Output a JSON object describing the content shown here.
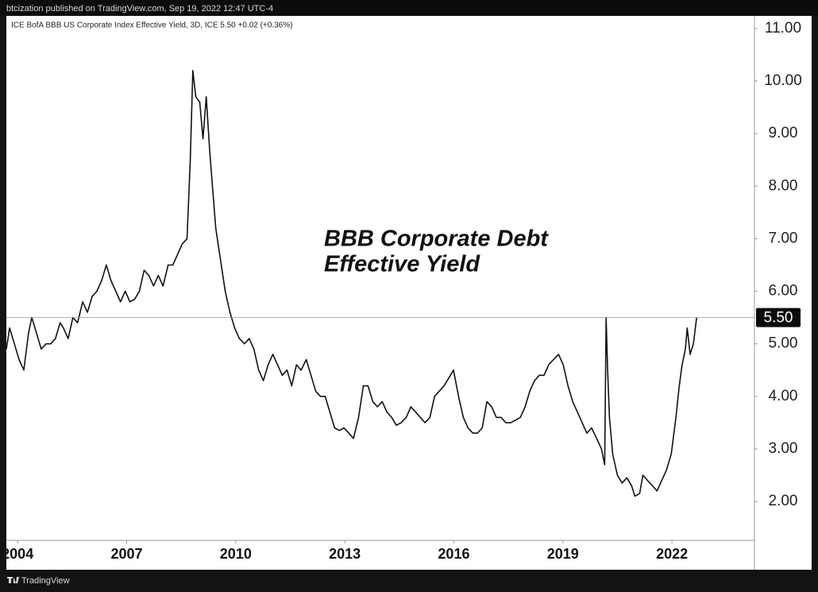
{
  "header": {
    "publisher": "btcization published on TradingView.com, Sep 19, 2022 12:47 UTC-4"
  },
  "footer": {
    "brand": "TradingView"
  },
  "chart_data": {
    "type": "line",
    "title": "ICE BofA BBB US Corporate Index Effective Yield, 3D, ICE  5.50  +0.02 (+0.36%)",
    "annotation": [
      "BBB Corporate Debt",
      "Effective Yield"
    ],
    "x": [
      2003.69,
      2003.78,
      2003.91,
      2004.04,
      2004.17,
      2004.3,
      2004.39,
      2004.52,
      2004.65,
      2004.78,
      2004.91,
      2005.04,
      2005.17,
      2005.26,
      2005.39,
      2005.52,
      2005.65,
      2005.79,
      2005.92,
      2006.05,
      2006.18,
      2006.31,
      2006.44,
      2006.57,
      2006.7,
      2006.83,
      2006.96,
      2007.09,
      2007.22,
      2007.35,
      2007.48,
      2007.61,
      2007.74,
      2007.87,
      2008.0,
      2008.14,
      2008.27,
      2008.4,
      2008.53,
      2008.66,
      2008.75,
      2008.82,
      2008.9,
      2009.01,
      2009.1,
      2009.19,
      2009.28,
      2009.36,
      2009.45,
      2009.58,
      2009.71,
      2009.84,
      2009.97,
      2010.1,
      2010.24,
      2010.37,
      2010.5,
      2010.63,
      2010.76,
      2010.89,
      2011.02,
      2011.15,
      2011.28,
      2011.41,
      2011.54,
      2011.67,
      2011.8,
      2011.94,
      2012.07,
      2012.2,
      2012.33,
      2012.46,
      2012.59,
      2012.72,
      2012.85,
      2012.98,
      2013.11,
      2013.24,
      2013.38,
      2013.51,
      2013.64,
      2013.77,
      2013.9,
      2014.03,
      2014.16,
      2014.29,
      2014.42,
      2014.55,
      2014.69,
      2014.82,
      2014.95,
      2015.08,
      2015.21,
      2015.34,
      2015.47,
      2015.6,
      2015.73,
      2015.86,
      2015.99,
      2016.13,
      2016.26,
      2016.39,
      2016.52,
      2016.65,
      2016.78,
      2016.91,
      2017.04,
      2017.17,
      2017.3,
      2017.43,
      2017.57,
      2017.7,
      2017.83,
      2017.96,
      2018.09,
      2018.22,
      2018.35,
      2018.48,
      2018.61,
      2018.74,
      2018.88,
      2019.01,
      2019.14,
      2019.27,
      2019.4,
      2019.53,
      2019.66,
      2019.79,
      2019.93,
      2020.06,
      2020.15,
      2020.19,
      2020.23,
      2020.28,
      2020.37,
      2020.5,
      2020.63,
      2020.76,
      2020.89,
      2020.98,
      2021.11,
      2021.2,
      2021.33,
      2021.46,
      2021.59,
      2021.72,
      2021.85,
      2021.98,
      2022.11,
      2022.2,
      2022.28,
      2022.37,
      2022.42,
      2022.5,
      2022.59,
      2022.68
    ],
    "series": [
      {
        "name": "ICE BofA BBB US Corporate Index Effective Yield",
        "color": "#111111",
        "values": [
          4.9,
          5.3,
          5.0,
          4.7,
          4.5,
          5.2,
          5.5,
          5.2,
          4.9,
          5.0,
          5.0,
          5.1,
          5.4,
          5.3,
          5.1,
          5.5,
          5.4,
          5.8,
          5.6,
          5.9,
          6.0,
          6.2,
          6.5,
          6.2,
          6.0,
          5.8,
          6.0,
          5.8,
          5.85,
          6.0,
          6.4,
          6.3,
          6.1,
          6.3,
          6.1,
          6.5,
          6.5,
          6.7,
          6.9,
          7.0,
          8.5,
          10.2,
          9.7,
          9.6,
          8.9,
          9.7,
          8.7,
          8.0,
          7.2,
          6.6,
          6.0,
          5.6,
          5.3,
          5.1,
          5.0,
          5.1,
          4.9,
          4.5,
          4.3,
          4.6,
          4.8,
          4.6,
          4.4,
          4.5,
          4.2,
          4.6,
          4.5,
          4.7,
          4.4,
          4.1,
          4.0,
          4.0,
          3.7,
          3.4,
          3.35,
          3.4,
          3.3,
          3.2,
          3.6,
          4.2,
          4.2,
          3.9,
          3.8,
          3.9,
          3.7,
          3.6,
          3.45,
          3.5,
          3.6,
          3.8,
          3.7,
          3.6,
          3.5,
          3.6,
          4.0,
          4.1,
          4.2,
          4.35,
          4.5,
          4.0,
          3.6,
          3.4,
          3.3,
          3.3,
          3.4,
          3.9,
          3.8,
          3.6,
          3.6,
          3.5,
          3.5,
          3.55,
          3.6,
          3.8,
          4.1,
          4.3,
          4.4,
          4.4,
          4.6,
          4.7,
          4.8,
          4.6,
          4.2,
          3.9,
          3.7,
          3.5,
          3.3,
          3.4,
          3.2,
          3.0,
          2.7,
          5.5,
          4.5,
          3.6,
          2.9,
          2.5,
          2.35,
          2.45,
          2.3,
          2.1,
          2.15,
          2.5,
          2.4,
          2.3,
          2.2,
          2.4,
          2.6,
          2.9,
          3.6,
          4.2,
          4.6,
          4.9,
          5.3,
          4.8,
          5.0,
          5.5
        ]
      }
    ],
    "last_value": {
      "value": 5.5,
      "label": "5.50"
    },
    "xlim": [
      2003.69,
      2024.27
    ],
    "xticks": [
      2004,
      2007,
      2010,
      2013,
      2016,
      2019,
      2022
    ],
    "ylim": [
      1.26,
      11.24
    ],
    "yticks": [
      {
        "value": 2,
        "label": "2.00"
      },
      {
        "value": 3,
        "label": "3.00"
      },
      {
        "value": 4,
        "label": "4.00"
      },
      {
        "value": 5,
        "label": "5.00"
      },
      {
        "value": 6,
        "label": "6.00"
      },
      {
        "value": 7,
        "label": "7.00"
      },
      {
        "value": 8,
        "label": "8.00"
      },
      {
        "value": 9,
        "label": "9.00"
      },
      {
        "value": 10,
        "label": "10.00"
      },
      {
        "value": 11,
        "label": "11.00"
      }
    ]
  }
}
